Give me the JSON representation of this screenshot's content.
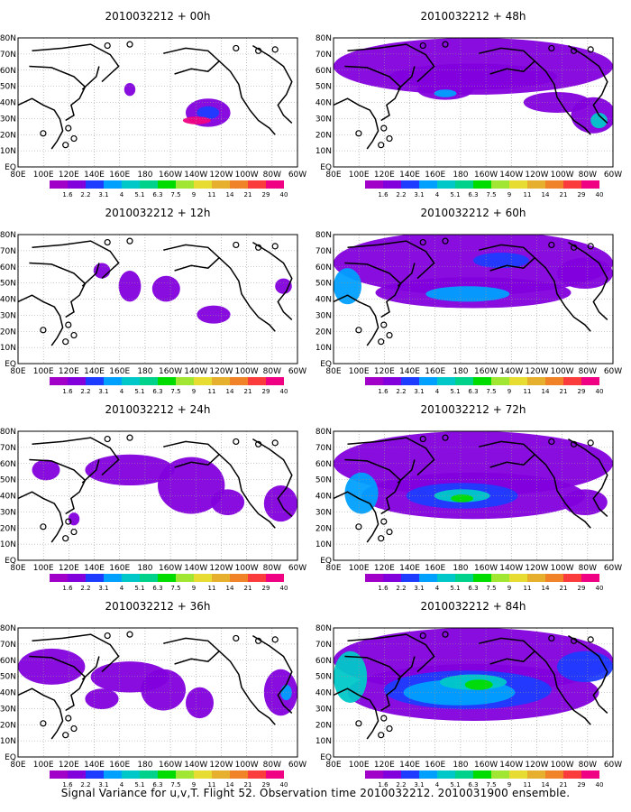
{
  "caption": "Signal Variance for u,v,T. Flight 52. Observation time 2010032212. 2010031900 ensemble.",
  "lat_labels": [
    "80N",
    "70N",
    "60N",
    "50N",
    "40N",
    "30N",
    "20N",
    "10N",
    "EQ"
  ],
  "lon_labels": [
    "80E",
    "100E",
    "120E",
    "140E",
    "160E",
    "180",
    "160W",
    "140W",
    "120W",
    "100W",
    "80W",
    "60W"
  ],
  "legend": {
    "values": [
      "1.6",
      "2.2",
      "3.1",
      "4",
      "5.1",
      "6.3",
      "7.5",
      "9",
      "11",
      "14",
      "21",
      "29",
      "40"
    ],
    "colors": [
      "#a000c8",
      "#8200dc",
      "#1e3cff",
      "#00a0ff",
      "#00c8c8",
      "#00d28c",
      "#00dc00",
      "#a0e632",
      "#e6dc32",
      "#e6af2d",
      "#f08228",
      "#fa3c3c",
      "#f00082"
    ]
  },
  "panels": [
    {
      "title": "2010032212 + 00h"
    },
    {
      "title": "2010032212 + 48h"
    },
    {
      "title": "2010032212 + 12h"
    },
    {
      "title": "2010032212 + 60h"
    },
    {
      "title": "2010032212 + 24h"
    },
    {
      "title": "2010032212 + 72h"
    },
    {
      "title": "2010032212 + 36h"
    },
    {
      "title": "2010032212 + 84h"
    }
  ]
}
